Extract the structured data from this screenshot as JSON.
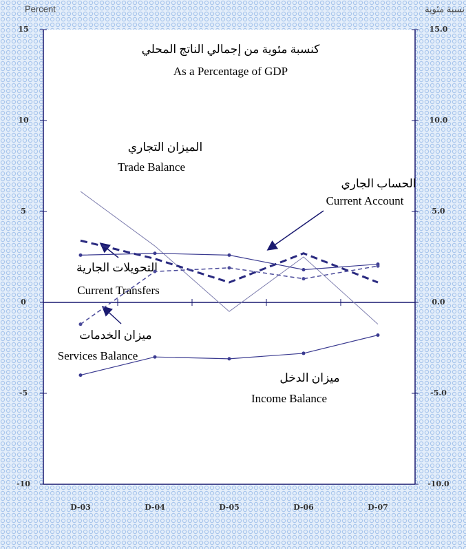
{
  "chart_data": {
    "type": "line",
    "title_ar": "كنسبة مئوية من إجمالي الناتج المحلي",
    "title": "As a Percentage of GDP",
    "y_label": "Percent",
    "y2_label": "نسبة مئوية",
    "categories": [
      "D-03",
      "D-04",
      "D-05",
      "D-06",
      "D-07"
    ],
    "series": [
      {
        "name": "Trade Balance",
        "name_ar": "الميزان التجاري",
        "color": "#8080b0",
        "values": [
          6.1,
          3.1,
          -0.5,
          2.5,
          -1.2
        ]
      },
      {
        "name": "Current Account",
        "name_ar": "الحساب الجاري",
        "color": "#2a2a80",
        "values": [
          3.4,
          2.4,
          1.1,
          2.7,
          1.1
        ]
      },
      {
        "name": "Current Transfers",
        "name_ar": "التحويلات الجارية",
        "color": "#3a3a90",
        "values": [
          2.6,
          2.7,
          2.6,
          1.8,
          2.1
        ]
      },
      {
        "name": "Services Balance",
        "name_ar": "ميزان الخدمات",
        "color": "#4a4a9a",
        "values": [
          -1.2,
          1.7,
          1.9,
          1.3,
          2.0
        ]
      },
      {
        "name": "Income Balance",
        "name_ar": "ميزان الدخل",
        "color": "#3a3a90",
        "values": [
          -4.0,
          -3.0,
          -3.1,
          -2.8,
          -1.8
        ]
      }
    ],
    "ylim": [
      -10,
      15
    ],
    "yticks": [
      -10,
      -5,
      0,
      5,
      10,
      15
    ],
    "y2lim": [
      -10,
      15
    ],
    "y2ticks": [
      {
        "value": -10,
        "label": "-10.0"
      },
      {
        "value": -5,
        "label": "-5.0"
      },
      {
        "value": 0,
        "label": "0.0"
      },
      {
        "value": 5,
        "label": "5.0"
      },
      {
        "value": 10,
        "label": "10.0"
      },
      {
        "value": 15,
        "label": "15.0"
      }
    ]
  }
}
